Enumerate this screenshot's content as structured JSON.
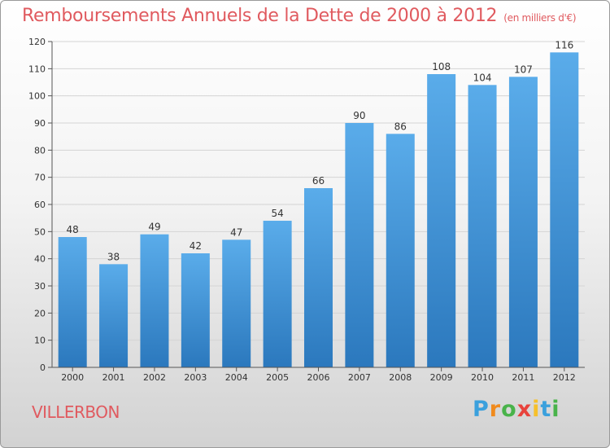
{
  "chart_data": {
    "type": "bar",
    "title": "Remboursements Annuels de la Dette de 2000 à 2012",
    "unit": "(en milliers d'€)",
    "categories": [
      "2000",
      "2001",
      "2002",
      "2003",
      "2004",
      "2005",
      "2006",
      "2007",
      "2008",
      "2009",
      "2010",
      "2011",
      "2012"
    ],
    "values": [
      48,
      38,
      49,
      42,
      47,
      54,
      66,
      90,
      86,
      108,
      104,
      107,
      116
    ],
    "ylim": [
      0,
      120
    ],
    "yticks": [
      0,
      10,
      20,
      30,
      40,
      50,
      60,
      70,
      80,
      90,
      100,
      110,
      120
    ],
    "grid": true,
    "bar_color": "#3d8ed8"
  },
  "footer": {
    "city": "VILLERBON",
    "logo": [
      "P",
      "r",
      "o",
      "x",
      "i",
      "t",
      "i"
    ],
    "logo_colors": [
      "#3aa0dd",
      "#f08a1c",
      "#49b34a",
      "#e8423c",
      "#f6c02a",
      "#3aa0dd",
      "#49b34a"
    ]
  }
}
